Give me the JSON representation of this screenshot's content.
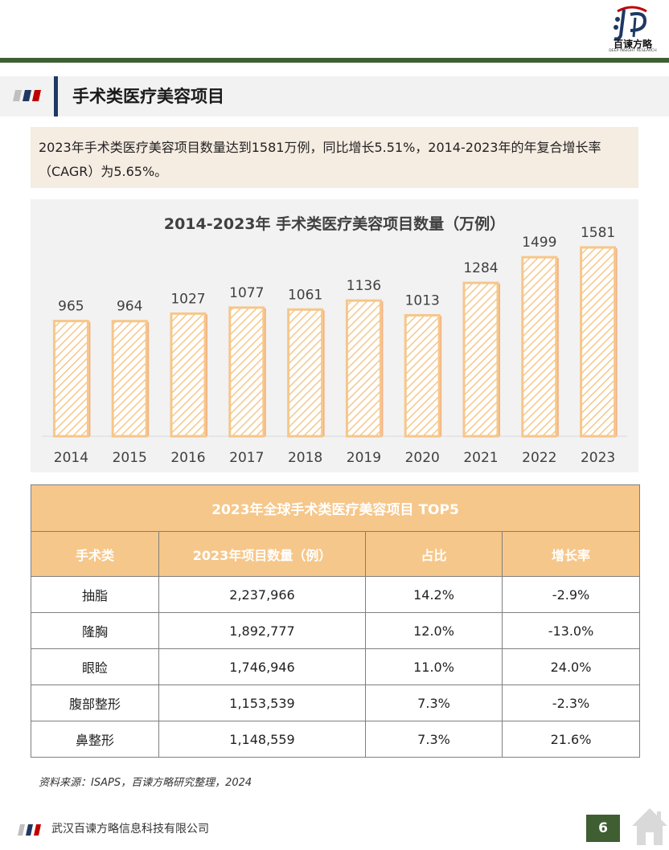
{
  "brand": {
    "name": "百谏方略",
    "tagline": "DEEP INSIGHT RESEARCH"
  },
  "section": {
    "title": "手术类医疗美容项目"
  },
  "summary": {
    "text": "2023年手术类医疗美容项目数量达到1581万例，同比增长5.51%，2014-2023年的年复合增长率（CAGR）为5.65%。"
  },
  "chart_data": {
    "type": "bar",
    "title": "2014-2023年 手术类医疗美容项目数量（万例）",
    "categories": [
      "2014",
      "2015",
      "2016",
      "2017",
      "2018",
      "2019",
      "2020",
      "2021",
      "2022",
      "2023"
    ],
    "values": [
      965,
      964,
      1027,
      1077,
      1061,
      1136,
      1013,
      1284,
      1499,
      1581
    ],
    "ylim": [
      0,
      1800
    ],
    "grid": false,
    "legend": "none",
    "colors": {
      "bar_border": "#f6c78a",
      "bar_hatch": "#f6c78a",
      "bar_shadow": "#f4b183",
      "label": "#404040"
    }
  },
  "table": {
    "caption": "2023年全球手术类医疗美容项目  TOP5",
    "headers": [
      "手术类",
      "2023年项目数量（例）",
      "占比",
      "增长率"
    ],
    "rows": [
      [
        "抽脂",
        "2,237,966",
        "14.2%",
        "-2.9%"
      ],
      [
        "隆胸",
        "1,892,777",
        "12.0%",
        "-13.0%"
      ],
      [
        "眼睑",
        "1,746,946",
        "11.0%",
        "24.0%"
      ],
      [
        "腹部整形",
        "1,153,539",
        "7.3%",
        "-2.3%"
      ],
      [
        "鼻整形",
        "1,148,559",
        "7.3%",
        "21.6%"
      ]
    ]
  },
  "source": "资料来源：ISAPS，百谏方略研究整理，2024",
  "footer": {
    "company": "武汉百谏方略信息科技有限公司",
    "page": "6"
  },
  "icons": {
    "logo": "brand-logo-icon",
    "home": "home-icon",
    "stripes": "tricolor-stripes-icon"
  },
  "colors": {
    "green": "#3f5f33",
    "navy": "#1f3864",
    "peach": "#f6c78a",
    "cream": "#f5ece2",
    "red": "#c00000"
  }
}
